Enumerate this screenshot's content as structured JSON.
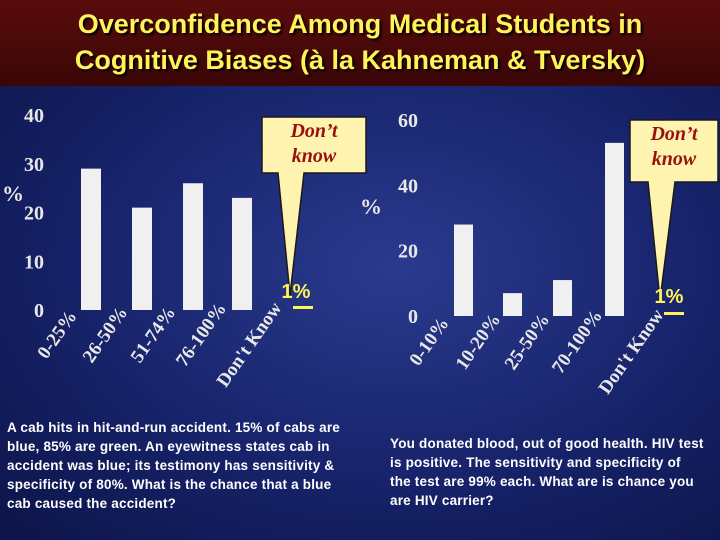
{
  "title": {
    "line1": "Overconfidence Among Medical Students in",
    "line2": "Cognitive Biases (à la Kahneman & Tversky)"
  },
  "colors": {
    "title": "#fff35a",
    "bar": "#f0f0f0",
    "callout": "#fff3b0",
    "callout_text": "#9a1010"
  },
  "chart_data": [
    {
      "type": "bar",
      "categories": [
        "0-25%",
        "26-50%",
        "51-74%",
        "76-100%",
        "Don't Know"
      ],
      "values": [
        29,
        21,
        26,
        23,
        1
      ],
      "ylabel": "%",
      "ylim": [
        0,
        40
      ],
      "yticks": [
        0,
        10,
        20,
        30,
        40
      ],
      "callout": "Don’t know",
      "callout_line2": "know",
      "callout_line1": "Don’t",
      "dontknow_label": "1%",
      "grid": false
    },
    {
      "type": "bar",
      "categories": [
        "0-10%",
        "10-20%",
        "25-50%",
        "70-100%",
        "Don't Know"
      ],
      "values": [
        28,
        7,
        11,
        53,
        1
      ],
      "ylabel": "%",
      "ylim": [
        0,
        60
      ],
      "yticks": [
        0,
        20,
        40,
        60
      ],
      "callout_line1": "Don’t",
      "callout_line2": "know",
      "dontknow_label": "1%",
      "grid": false
    }
  ],
  "left_text": "A cab hits in hit-and-run accident. 15% of cabs are blue, 85% are green.  An eyewitness states cab in accident was blue; its testimony has sensitivity & specificity of 80%.  What is the chance that a blue cab caused the accident?",
  "right_text": "You donated blood, out of good health. HIV test is positive.  The sensitivity and specificity of the test are 99% each. What are is chance you are HIV carrier?"
}
